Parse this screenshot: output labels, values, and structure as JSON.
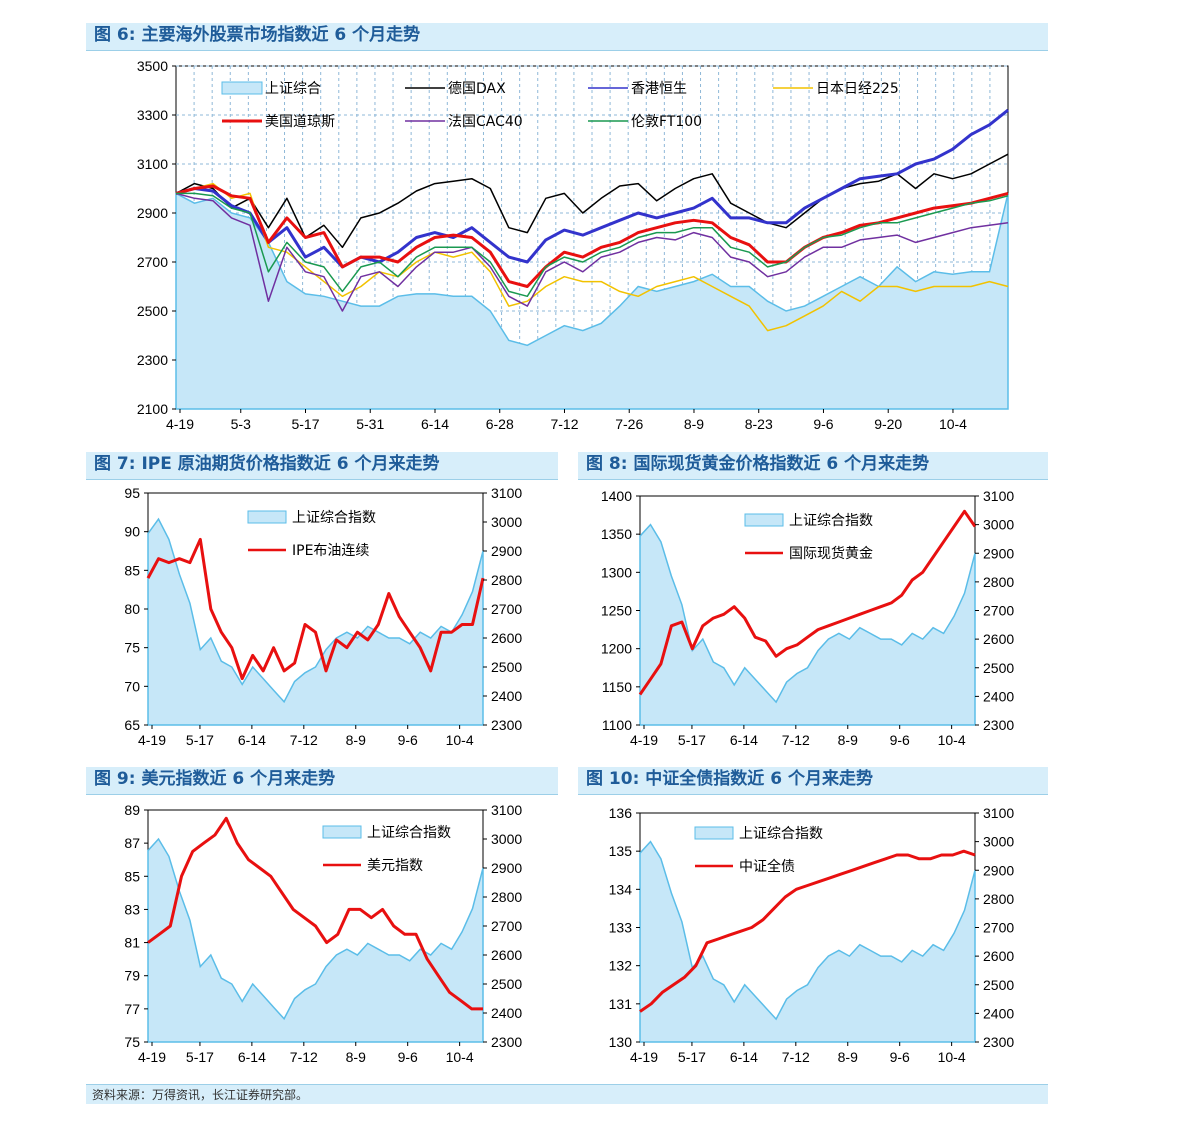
{
  "source_note": "资料来源：万得资讯，长江证券研究部。",
  "colors": {
    "area_fill": "#c6e7f8",
    "area_line": "#5bbde8",
    "title_bg": "#d7eefa",
    "title_text": "#1f5c99"
  },
  "chart_data": [
    {
      "id": "fig6",
      "type": "line",
      "title": "图 6:  主要海外股票市场指数近 6 个月走势",
      "x_labels": [
        "4-19",
        "5-3",
        "5-17",
        "5-31",
        "6-14",
        "6-28",
        "7-12",
        "7-26",
        "8-9",
        "8-23",
        "9-6",
        "9-20",
        "10-4"
      ],
      "ylim": [
        2100,
        3500
      ],
      "yticks": [
        2100,
        2300,
        2500,
        2700,
        2900,
        3100,
        3300,
        3500
      ],
      "grid": true,
      "legend_position": "top",
      "series": [
        {
          "name": "上证综合",
          "kind": "area",
          "color": "#5bbde8",
          "values": [
            2980,
            2940,
            2960,
            2900,
            2880,
            2780,
            2620,
            2570,
            2560,
            2540,
            2520,
            2520,
            2560,
            2570,
            2570,
            2560,
            2560,
            2500,
            2380,
            2360,
            2400,
            2440,
            2420,
            2450,
            2520,
            2600,
            2580,
            2600,
            2620,
            2650,
            2600,
            2600,
            2540,
            2500,
            2520,
            2560,
            2600,
            2640,
            2600,
            2680,
            2620,
            2660,
            2650,
            2660,
            2660,
            2980
          ]
        },
        {
          "name": "德国DAX",
          "kind": "line",
          "color": "#000000",
          "values": [
            2980,
            3020,
            3000,
            2920,
            2960,
            2840,
            2960,
            2800,
            2850,
            2760,
            2880,
            2900,
            2940,
            2990,
            3020,
            3030,
            3040,
            3000,
            2840,
            2820,
            2960,
            2980,
            2900,
            2960,
            3010,
            3020,
            2950,
            3000,
            3040,
            3060,
            2940,
            2900,
            2860,
            2840,
            2900,
            2960,
            3000,
            3020,
            3030,
            3060,
            3000,
            3060,
            3040,
            3060,
            3100,
            3140
          ]
        },
        {
          "name": "香港恒生",
          "kind": "line",
          "color": "#3333cc",
          "values": [
            2980,
            3000,
            2990,
            2930,
            2900,
            2780,
            2840,
            2720,
            2760,
            2680,
            2720,
            2700,
            2740,
            2800,
            2820,
            2800,
            2840,
            2780,
            2720,
            2700,
            2790,
            2830,
            2810,
            2840,
            2870,
            2900,
            2880,
            2900,
            2920,
            2960,
            2880,
            2880,
            2860,
            2860,
            2920,
            2960,
            3000,
            3040,
            3050,
            3060,
            3100,
            3120,
            3160,
            3220,
            3260,
            3320
          ]
        },
        {
          "name": "日本日经225",
          "kind": "line",
          "color": "#f2c200",
          "values": [
            2980,
            3000,
            3020,
            2960,
            2980,
            2760,
            2740,
            2680,
            2620,
            2560,
            2600,
            2660,
            2640,
            2700,
            2740,
            2720,
            2740,
            2660,
            2520,
            2540,
            2600,
            2640,
            2620,
            2620,
            2580,
            2560,
            2600,
            2620,
            2640,
            2600,
            2560,
            2520,
            2420,
            2440,
            2480,
            2520,
            2580,
            2540,
            2600,
            2600,
            2580,
            2600,
            2600,
            2600,
            2620,
            2600
          ]
        },
        {
          "name": "美国道琼斯",
          "kind": "line",
          "color": "#e81010",
          "values": [
            2980,
            3000,
            3010,
            2970,
            2960,
            2780,
            2880,
            2800,
            2820,
            2680,
            2720,
            2720,
            2700,
            2760,
            2800,
            2810,
            2800,
            2740,
            2620,
            2600,
            2680,
            2740,
            2720,
            2760,
            2780,
            2820,
            2840,
            2860,
            2870,
            2860,
            2800,
            2770,
            2700,
            2700,
            2760,
            2800,
            2820,
            2850,
            2860,
            2880,
            2900,
            2920,
            2930,
            2940,
            2960,
            2980
          ]
        },
        {
          "name": "法国CAC40",
          "kind": "line",
          "color": "#7030a0",
          "values": [
            2980,
            2960,
            2950,
            2880,
            2850,
            2540,
            2760,
            2660,
            2640,
            2500,
            2640,
            2660,
            2600,
            2680,
            2740,
            2740,
            2760,
            2680,
            2560,
            2520,
            2660,
            2700,
            2660,
            2720,
            2740,
            2780,
            2800,
            2790,
            2820,
            2800,
            2720,
            2700,
            2640,
            2660,
            2720,
            2760,
            2760,
            2790,
            2800,
            2810,
            2780,
            2800,
            2820,
            2840,
            2850,
            2860
          ]
        },
        {
          "name": "伦敦FT100",
          "kind": "line",
          "color": "#1a9950",
          "values": [
            2980,
            2980,
            2970,
            2920,
            2900,
            2660,
            2780,
            2700,
            2680,
            2580,
            2680,
            2700,
            2640,
            2720,
            2760,
            2760,
            2760,
            2700,
            2580,
            2560,
            2680,
            2720,
            2700,
            2740,
            2760,
            2800,
            2820,
            2820,
            2840,
            2840,
            2760,
            2740,
            2680,
            2700,
            2760,
            2800,
            2810,
            2840,
            2860,
            2860,
            2880,
            2900,
            2920,
            2940,
            2950,
            2970
          ]
        }
      ]
    },
    {
      "id": "fig7",
      "type": "line",
      "title": "图 7:  IPE 原油期货价格指数近 6 个月来走势",
      "x_labels": [
        "4-19",
        "5-17",
        "6-14",
        "7-12",
        "8-9",
        "9-6",
        "10-4"
      ],
      "ylim_left": [
        65,
        95
      ],
      "yticks_left": [
        65,
        70,
        75,
        80,
        85,
        90,
        95
      ],
      "ylim_right": [
        2300,
        3100
      ],
      "yticks_right": [
        2300,
        2400,
        2500,
        2600,
        2700,
        2800,
        2900,
        3000,
        3100
      ],
      "grid": false,
      "legend_position": "top-center",
      "series": [
        {
          "name": "上证综合指数",
          "kind": "area",
          "axis": "right",
          "color": "#5bbde8",
          "values": [
            2960,
            3010,
            2940,
            2820,
            2720,
            2560,
            2600,
            2520,
            2500,
            2440,
            2500,
            2460,
            2420,
            2380,
            2450,
            2480,
            2500,
            2560,
            2600,
            2620,
            2600,
            2640,
            2620,
            2600,
            2600,
            2580,
            2620,
            2600,
            2640,
            2620,
            2680,
            2760,
            2900
          ]
        },
        {
          "name": "IPE布油连续",
          "kind": "line",
          "axis": "left",
          "color": "#e81010",
          "values": [
            84,
            86.5,
            86,
            86.5,
            86,
            89,
            80,
            77,
            75,
            71,
            74,
            72,
            75,
            72,
            73,
            78,
            77,
            72,
            76,
            75,
            77,
            76,
            78,
            82,
            79,
            77,
            75,
            72,
            77,
            77,
            78,
            78,
            84
          ]
        }
      ]
    },
    {
      "id": "fig8",
      "type": "line",
      "title": "图 8:  国际现货黄金价格指数近 6 个月来走势",
      "x_labels": [
        "4-19",
        "5-17",
        "6-14",
        "7-12",
        "8-9",
        "9-6",
        "10-4"
      ],
      "ylim_left": [
        1100,
        1400
      ],
      "yticks_left": [
        1100,
        1150,
        1200,
        1250,
        1300,
        1350,
        1400
      ],
      "ylim_right": [
        2300,
        3100
      ],
      "yticks_right": [
        2300,
        2400,
        2500,
        2600,
        2700,
        2800,
        2900,
        3000,
        3100
      ],
      "grid": false,
      "legend_position": "top-center",
      "series": [
        {
          "name": "上证综合指数",
          "kind": "area",
          "axis": "right",
          "color": "#5bbde8",
          "values": [
            2960,
            3000,
            2940,
            2820,
            2720,
            2560,
            2600,
            2520,
            2500,
            2440,
            2500,
            2460,
            2420,
            2380,
            2450,
            2480,
            2500,
            2560,
            2600,
            2620,
            2600,
            2640,
            2620,
            2600,
            2600,
            2580,
            2620,
            2600,
            2640,
            2620,
            2680,
            2760,
            2900
          ]
        },
        {
          "name": "国际现货黄金",
          "kind": "line",
          "axis": "left",
          "color": "#e81010",
          "values": [
            1140,
            1160,
            1180,
            1230,
            1235,
            1200,
            1230,
            1240,
            1245,
            1255,
            1240,
            1215,
            1210,
            1190,
            1200,
            1205,
            1215,
            1225,
            1230,
            1235,
            1240,
            1245,
            1250,
            1255,
            1260,
            1270,
            1290,
            1300,
            1320,
            1340,
            1360,
            1380,
            1360
          ]
        }
      ]
    },
    {
      "id": "fig9",
      "type": "line",
      "title": "图 9:  美元指数近 6 个月来走势",
      "x_labels": [
        "4-19",
        "5-17",
        "6-14",
        "7-12",
        "8-9",
        "9-6",
        "10-4"
      ],
      "ylim_left": [
        75,
        89
      ],
      "yticks_left": [
        75,
        77,
        79,
        81,
        83,
        85,
        87,
        89
      ],
      "ylim_right": [
        2300,
        3100
      ],
      "yticks_right": [
        2300,
        2400,
        2500,
        2600,
        2700,
        2800,
        2900,
        3000,
        3100
      ],
      "grid": false,
      "legend_position": "top-right",
      "series": [
        {
          "name": "上证综合指数",
          "kind": "area",
          "axis": "right",
          "color": "#5bbde8",
          "values": [
            2960,
            3000,
            2940,
            2820,
            2720,
            2560,
            2600,
            2520,
            2500,
            2440,
            2500,
            2460,
            2420,
            2380,
            2450,
            2480,
            2500,
            2560,
            2600,
            2620,
            2600,
            2640,
            2620,
            2600,
            2600,
            2580,
            2620,
            2600,
            2640,
            2620,
            2680,
            2760,
            2900
          ]
        },
        {
          "name": "美元指数",
          "kind": "line",
          "axis": "left",
          "color": "#e81010",
          "values": [
            81,
            81.5,
            82,
            85,
            86.5,
            87,
            87.5,
            88.5,
            87,
            86,
            85.5,
            85,
            84,
            83,
            82.5,
            82,
            81,
            81.5,
            83,
            83,
            82.5,
            83,
            82,
            81.5,
            81.5,
            80,
            79,
            78,
            77.5,
            77,
            77
          ]
        }
      ]
    },
    {
      "id": "fig10",
      "type": "line",
      "title": "图 10:  中证全债指数近 6 个月来走势",
      "x_labels": [
        "4-19",
        "5-17",
        "6-14",
        "7-12",
        "8-9",
        "9-6",
        "10-4"
      ],
      "ylim_left": [
        130,
        136
      ],
      "yticks_left": [
        130,
        131,
        132,
        133,
        134,
        135,
        136
      ],
      "ylim_right": [
        2300,
        3100
      ],
      "yticks_right": [
        2300,
        2400,
        2500,
        2600,
        2700,
        2800,
        2900,
        3000,
        3100
      ],
      "grid": false,
      "legend_position": "top-center",
      "series": [
        {
          "name": "上证综合指数",
          "kind": "area",
          "axis": "right",
          "color": "#5bbde8",
          "values": [
            2960,
            3000,
            2940,
            2820,
            2720,
            2560,
            2600,
            2520,
            2500,
            2440,
            2500,
            2460,
            2420,
            2380,
            2450,
            2480,
            2500,
            2560,
            2600,
            2620,
            2600,
            2640,
            2620,
            2600,
            2600,
            2580,
            2620,
            2600,
            2640,
            2620,
            2680,
            2760,
            2900
          ]
        },
        {
          "name": "中证全债",
          "kind": "line",
          "axis": "left",
          "color": "#e81010",
          "values": [
            130.8,
            131,
            131.3,
            131.5,
            131.7,
            132,
            132.6,
            132.7,
            132.8,
            132.9,
            133,
            133.2,
            133.5,
            133.8,
            134,
            134.1,
            134.2,
            134.3,
            134.4,
            134.5,
            134.6,
            134.7,
            134.8,
            134.9,
            134.9,
            134.8,
            134.8,
            134.9,
            134.9,
            135,
            134.9
          ]
        }
      ]
    }
  ]
}
